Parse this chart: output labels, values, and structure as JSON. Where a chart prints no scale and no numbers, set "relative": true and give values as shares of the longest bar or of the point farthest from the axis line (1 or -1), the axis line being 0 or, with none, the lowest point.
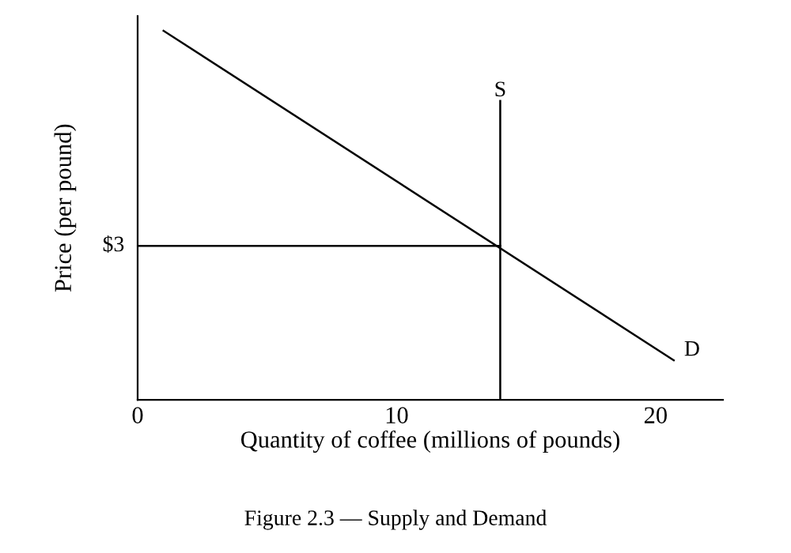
{
  "chart_data": {
    "type": "line",
    "title": "Figure 2.3 — Supply and Demand",
    "xlabel": "Quantity of coffee (millions of pounds)",
    "ylabel": "Price (per pound)",
    "relative": true,
    "xlim": [
      0,
      22.6
    ],
    "xticks": [
      0,
      10,
      20
    ],
    "grid": false,
    "marker": "none",
    "line_style": "solid",
    "series": [
      {
        "name": "D",
        "color": "#000000",
        "x": [
          1,
          20.7
        ],
        "values": [
          1,
          0.107
        ]
      },
      {
        "name": "S",
        "color": "#000000",
        "x": [
          14,
          14
        ],
        "values": [
          0,
          0.81
        ]
      },
      {
        "color": "#000000",
        "x": [
          0,
          14
        ],
        "values": [
          0.417,
          0.417
        ]
      }
    ],
    "annotations": [
      {
        "text": "$3",
        "x": 0,
        "y": 0.417
      }
    ]
  }
}
